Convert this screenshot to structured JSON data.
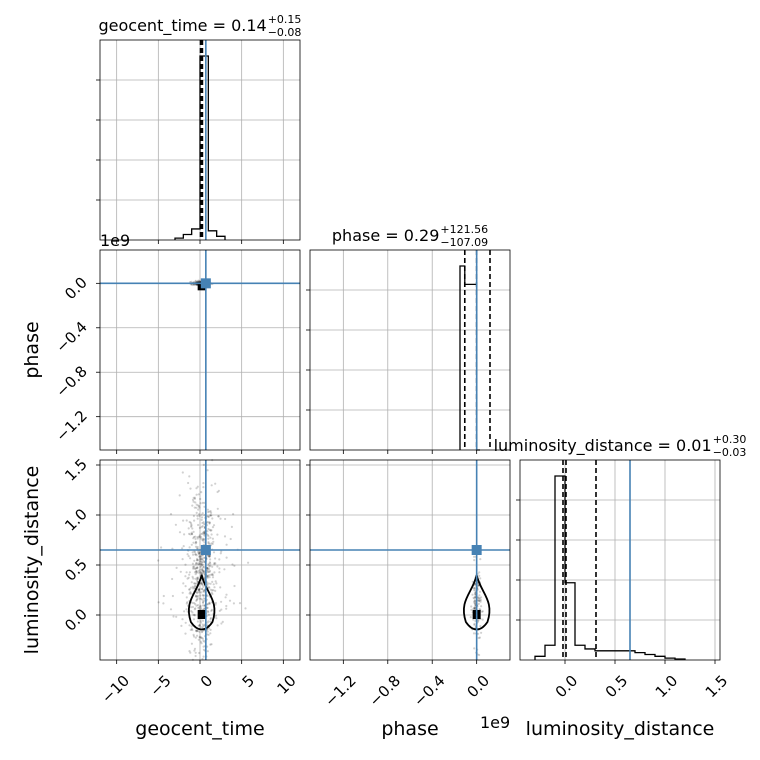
{
  "chart_data": {
    "type": "corner",
    "truth_color": "#4682b4",
    "line_color": "#000000",
    "grid": true,
    "parameters": [
      "geocent_time",
      "phase",
      "luminosity_distance"
    ],
    "truth_values": {
      "geocent_time": 0.7,
      "phase": 0.0,
      "luminosity_distance": 0.65
    },
    "axes": {
      "geocent_time": {
        "label": "geocent_time",
        "range": [
          -12,
          12
        ],
        "ticks": [
          -10,
          -5,
          0,
          5,
          10
        ],
        "tick_labels": [
          "−10",
          "−5",
          "0",
          "5",
          "10"
        ]
      },
      "phase": {
        "label": "phase",
        "range": [
          -1500000000.0,
          300000000.0
        ],
        "ticks": [
          -1200000000.0,
          -800000000.0,
          -400000000.0,
          0.0
        ],
        "tick_labels": [
          "−1.2",
          "−0.8",
          "−0.4",
          "0.0"
        ],
        "offset_text": "1e9"
      },
      "luminosity_distance": {
        "label": "luminosity_distance",
        "range": [
          -0.45,
          1.55
        ],
        "ticks": [
          0.0,
          0.5,
          1.0,
          1.5
        ],
        "tick_labels": [
          "0.0",
          "0.5",
          "1.0",
          "1.5"
        ]
      }
    },
    "titles": [
      {
        "param": "geocent_time",
        "main": "geocent_time = 0.14",
        "sup": "+0.15",
        "sub": "−0.08"
      },
      {
        "param": "phase",
        "main": "phase = 0.29",
        "sup": "+121.56",
        "sub": "−107.09"
      },
      {
        "param": "luminosity_distance",
        "main": "luminosity_distance = 0.01",
        "sup": "+0.30",
        "sub": "−0.03"
      }
    ],
    "histograms": {
      "geocent_time": {
        "bins": [
          -3,
          -2,
          -1,
          0,
          1,
          2,
          3
        ],
        "counts": [
          0.01,
          0.03,
          0.06,
          1.0,
          0.05,
          0.02
        ],
        "quantiles": [
          0.06,
          0.14,
          0.29
        ]
      },
      "phase": {
        "bins": [
          -150000000.0,
          -107000000.0,
          0,
          30000000.0
        ],
        "counts": [
          1.0,
          0.9,
          0.0
        ],
        "quantiles": [
          -107000000.0,
          0.0,
          120000000.0
        ]
      },
      "luminosity_distance": {
        "bins": [
          -0.3,
          -0.2,
          -0.1,
          0.0,
          0.1,
          0.2,
          0.3,
          0.4,
          0.5,
          0.6,
          0.7,
          0.8,
          0.9,
          1.0,
          1.1,
          1.2
        ],
        "counts": [
          0.02,
          0.08,
          1.0,
          0.42,
          0.08,
          0.06,
          0.05,
          0.05,
          0.05,
          0.05,
          0.04,
          0.03,
          0.02,
          0.01,
          0.005
        ],
        "quantiles": [
          -0.02,
          0.01,
          0.31
        ]
      }
    },
    "scatter_panels": [
      {
        "x": "geocent_time",
        "y": "phase",
        "center": [
          0.2,
          0.0
        ],
        "spread": [
          0.6,
          10000000.0
        ]
      },
      {
        "x": "geocent_time",
        "y": "luminosity_distance",
        "center": [
          0.2,
          0.4
        ],
        "spread": [
          0.8,
          0.45
        ]
      },
      {
        "x": "phase",
        "y": "luminosity_distance",
        "center": [
          0.0,
          0.1
        ],
        "spread": [
          20000000.0,
          0.2
        ]
      }
    ]
  }
}
